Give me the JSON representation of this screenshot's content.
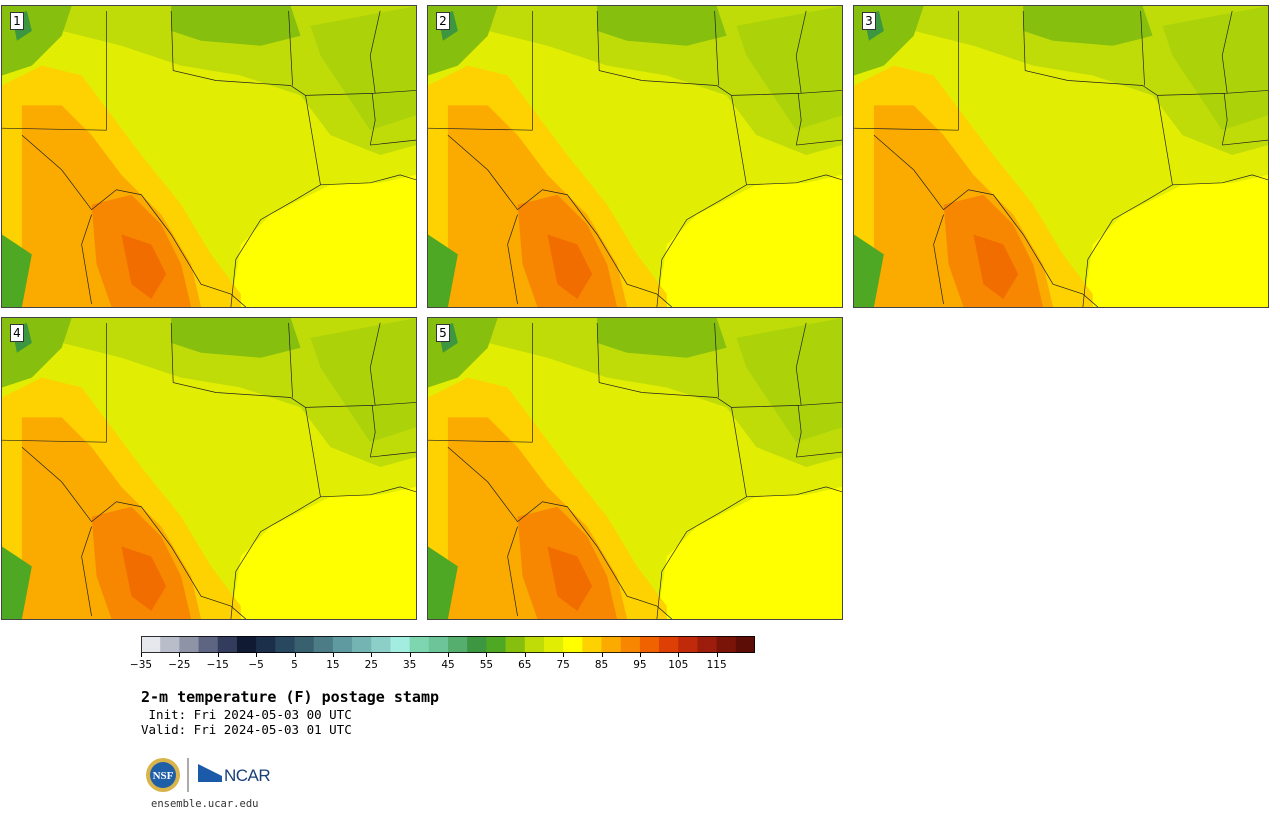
{
  "panels": [
    {
      "label": "1"
    },
    {
      "label": "2"
    },
    {
      "label": "3"
    },
    {
      "label": "4"
    },
    {
      "label": "5"
    }
  ],
  "colorbar": {
    "tick_labels": [
      "−35",
      "−25",
      "−15",
      "−5",
      "5",
      "15",
      "25",
      "35",
      "45",
      "55",
      "65",
      "75",
      "85",
      "95",
      "105",
      "115"
    ],
    "colors": [
      "#e6e8ee",
      "#b9bdc9",
      "#8e93a6",
      "#5e6583",
      "#333c5c",
      "#111a33",
      "#1b2e4a",
      "#28485f",
      "#38606f",
      "#4c7c86",
      "#5f9aa0",
      "#74b5b3",
      "#8ccfc8",
      "#a3ece0",
      "#7dd6b0",
      "#6cc498",
      "#55ad6e",
      "#3d9640",
      "#4ea823",
      "#86bf0e",
      "#bfdc08",
      "#e2ed04",
      "#ffff00",
      "#fed100",
      "#fbab00",
      "#f78700",
      "#f06200",
      "#dd3f05",
      "#c02a0a",
      "#9c1d0c",
      "#7b1408",
      "#5c0d06"
    ]
  },
  "title": "2-m temperature (F) postage stamp",
  "init": " Init: Fri 2024-05-03 00 UTC",
  "valid": "Valid: Fri 2024-05-03 01 UTC",
  "logo": {
    "nsf": "NSF",
    "ncar": "NCAR"
  },
  "url": "ensemble.ucar.edu"
}
